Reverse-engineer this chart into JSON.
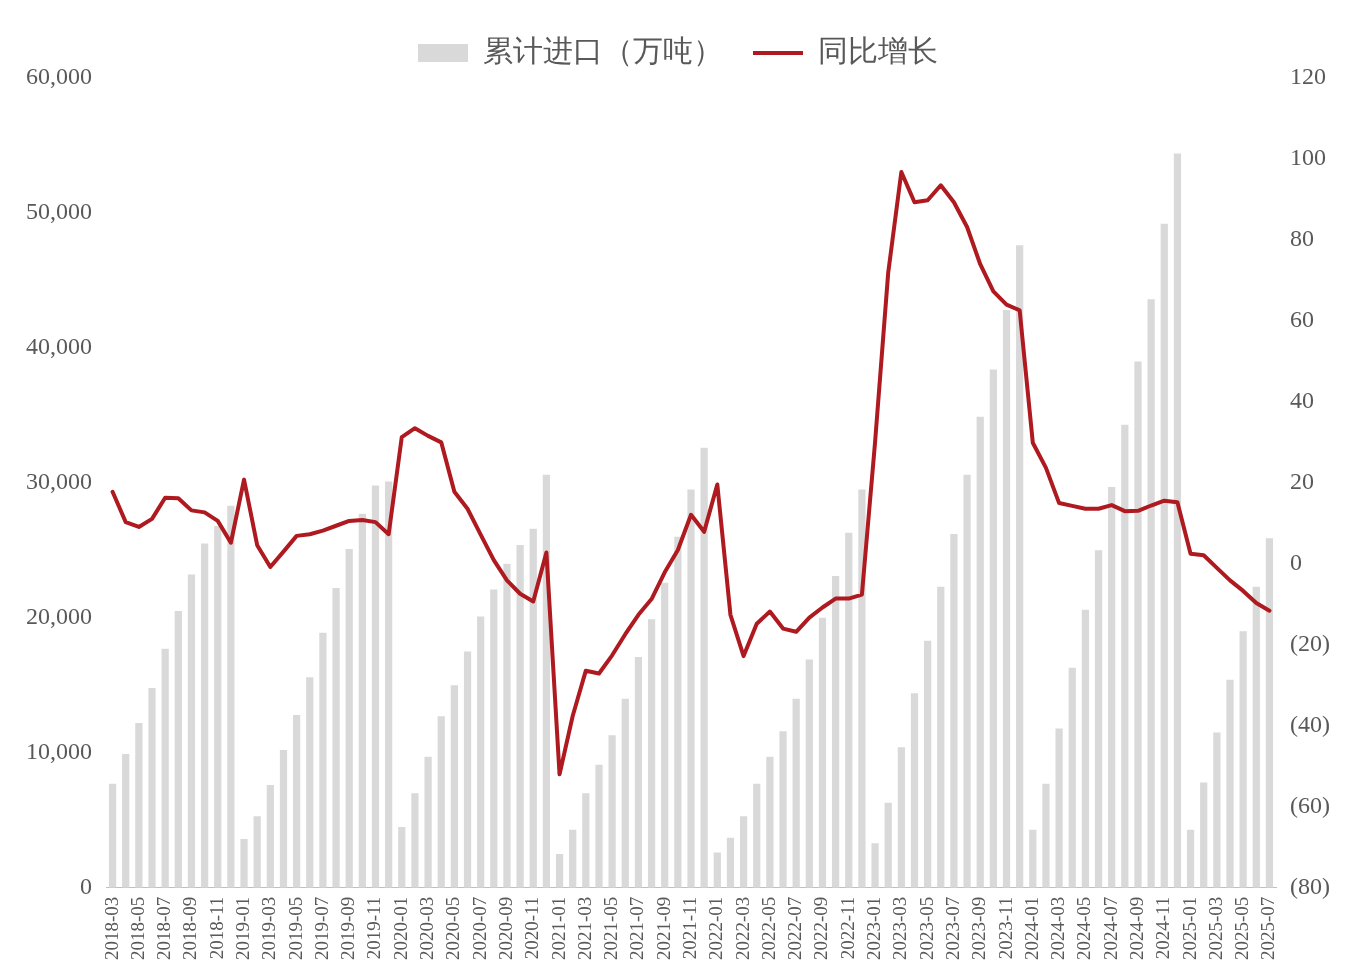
{
  "chart_data": {
    "type": "bar",
    "categories": [
      "2018-03",
      null,
      "2018-05",
      null,
      "2018-07",
      null,
      "2018-09",
      null,
      "2018-11",
      null,
      "2019-01",
      null,
      "2019-03",
      null,
      "2019-05",
      null,
      "2019-07",
      null,
      "2019-09",
      null,
      "2019-11",
      null,
      "2020-01",
      null,
      "2020-03",
      null,
      "2020-05",
      null,
      "2020-07",
      null,
      "2020-09",
      null,
      "2020-11",
      null,
      "2021-01",
      null,
      "2021-03",
      null,
      "2021-05",
      null,
      "2021-07",
      null,
      "2021-09",
      null,
      "2021-11",
      null,
      "2022-01",
      null,
      "2022-03",
      null,
      "2022-05",
      null,
      "2022-07",
      null,
      "2022-09",
      null,
      "2022-11",
      null,
      "2023-01",
      null,
      "2023-03",
      null,
      "2023-05",
      null,
      "2023-07",
      null,
      "2023-09",
      null,
      "2023-11",
      null,
      "2024-01",
      null,
      "2024-03",
      null,
      "2024-05",
      null,
      "2024-07",
      null,
      "2024-09",
      null,
      "2024-11",
      null,
      "2025-01",
      null,
      "2025-03",
      null,
      "2025-05",
      null,
      "2025-07"
    ],
    "series": [
      {
        "name": "累计进口（万吨）",
        "color": "#d9d9d9",
        "values": [
          7700,
          9900,
          12200,
          14800,
          17700,
          20500,
          23200,
          25500,
          26800,
          28300,
          3600,
          5300,
          7600,
          10200,
          12800,
          15600,
          18900,
          22200,
          25100,
          27700,
          29800,
          30100,
          4500,
          7000,
          9700,
          12700,
          15000,
          17500,
          20100,
          22100,
          24000,
          25400,
          26600,
          30600,
          2500,
          4300,
          7000,
          9100,
          11300,
          14000,
          17100,
          19900,
          22600,
          26000,
          29500,
          32600,
          2600,
          3700,
          5300,
          7700,
          9700,
          11600,
          14000,
          16900,
          20000,
          23100,
          26300,
          29500,
          3300,
          6300,
          10400,
          14400,
          18300,
          22300,
          26200,
          30600,
          34900,
          38400,
          42800,
          47600,
          4300,
          7700,
          11800,
          16300,
          20600,
          25000,
          29700,
          34300,
          39000,
          43600,
          49200,
          54400,
          4300,
          7800,
          11500,
          15400,
          19000,
          22300,
          25900
        ]
      },
      {
        "name": "同比增长",
        "type": "line",
        "axis": "y2",
        "color": "#ae1a1f",
        "values": [
          17.8,
          10.3,
          9.1,
          11.1,
          16.3,
          16.2,
          13.2,
          12.7,
          10.6,
          5.2,
          20.8,
          4.6,
          -0.8,
          3,
          6.9,
          7.3,
          8.2,
          9.4,
          10.6,
          10.8,
          10.3,
          7.3,
          31.3,
          33.5,
          31.6,
          30,
          17.8,
          13.6,
          7.2,
          0.9,
          -4.1,
          -7.4,
          -9.3,
          2.8,
          -52,
          -37.6,
          -26.4,
          -27.1,
          -22.6,
          -17.4,
          -12.6,
          -8.7,
          -2.1,
          3.4,
          12.1,
          7.9,
          19.6,
          -12.6,
          -22.8,
          -14.8,
          -11.8,
          -16,
          -16.8,
          -13.3,
          -10.8,
          -8.6,
          -8.6,
          -7.6,
          30,
          71.9,
          96.8,
          89.3,
          89.8,
          93.5,
          89.3,
          83.2,
          74,
          67.3,
          64,
          62.6,
          29.9,
          23.7,
          15,
          14.3,
          13.6,
          13.6,
          14.5,
          13,
          13.1,
          14.4,
          15.6,
          15.2,
          2.5,
          2.1,
          -1,
          -4.1,
          -6.7,
          -9.7,
          -11.6
        ]
      }
    ],
    "ylim": [
      0,
      60000
    ],
    "yticks": [
      0,
      {
        "value": 10000,
        "label": "10,000"
      },
      {
        "value": 20000,
        "label": "20,000"
      },
      {
        "value": 30000,
        "label": "30,000"
      },
      {
        "value": 40000,
        "label": "40,000"
      },
      {
        "value": 50000,
        "label": "50,000"
      },
      {
        "value": 60000,
        "label": "60,000"
      }
    ],
    "y2lim": [
      -80,
      120
    ],
    "y2ticks": [
      {
        "value": -80,
        "label": "(80)"
      },
      {
        "value": -60,
        "label": "(60)"
      },
      {
        "value": -40,
        "label": "(40)"
      },
      {
        "value": -20,
        "label": "(20)"
      },
      0,
      20,
      40,
      60,
      80,
      100,
      120
    ],
    "grid": false,
    "legend": "top",
    "marker": "none",
    "line_style": "solid"
  }
}
